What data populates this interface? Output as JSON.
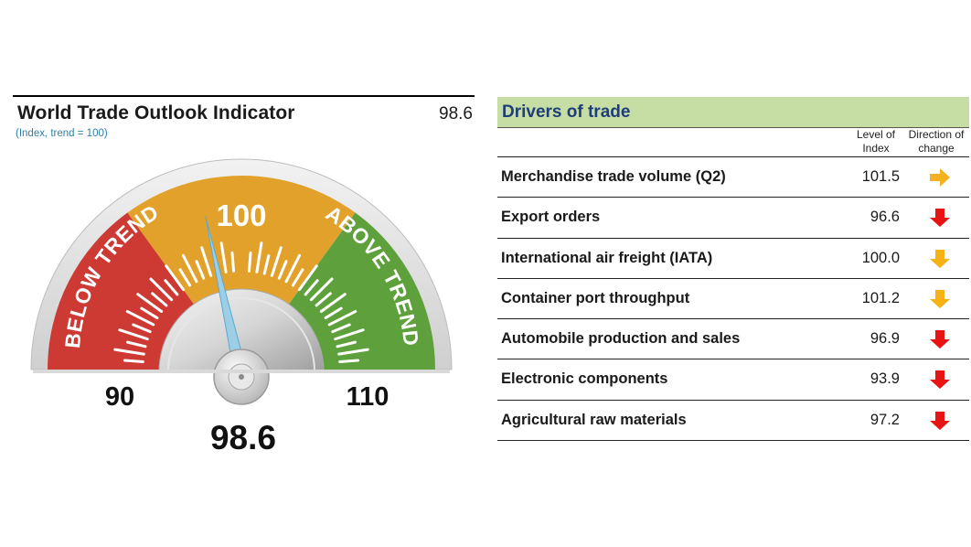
{
  "indicator": {
    "title": "World Trade Outlook Indicator",
    "value": "98.6",
    "subtitle": "(Index, trend = 100)"
  },
  "chart_data": {
    "type": "gauge",
    "min": 90,
    "max": 110,
    "trend": 100,
    "value": 98.6,
    "labels": {
      "min": "90",
      "max": "110",
      "center": "100",
      "reading": "98.6",
      "below": "BELOW TREND",
      "above": "ABOVE TREND"
    },
    "bands": [
      {
        "name": "below",
        "from": 90,
        "to": 96,
        "color": "#cd3a34"
      },
      {
        "name": "trend",
        "from": 96,
        "to": 104,
        "color": "#e2a12a"
      },
      {
        "name": "above",
        "from": 104,
        "to": 110,
        "color": "#5ea13c"
      }
    ]
  },
  "drivers": {
    "title": "Drivers of trade",
    "col_level": "Level of Index",
    "col_direction": "Direction of change",
    "rows": [
      {
        "label": "Merchandise trade volume (Q2)",
        "value": "101.5",
        "direction": "right",
        "color": "#f5b120"
      },
      {
        "label": "Export orders",
        "value": "96.6",
        "direction": "down",
        "color": "#e81414"
      },
      {
        "label": "International air freight (IATA)",
        "value": "100.0",
        "direction": "down",
        "color": "#f7b316"
      },
      {
        "label": "Container port throughput",
        "value": "101.2",
        "direction": "down",
        "color": "#f7b316"
      },
      {
        "label": "Automobile production and sales",
        "value": "96.9",
        "direction": "down",
        "color": "#e81414"
      },
      {
        "label": "Electronic components",
        "value": "93.9",
        "direction": "down",
        "color": "#e81414"
      },
      {
        "label": "Agricultural raw materials",
        "value": "97.2",
        "direction": "down",
        "color": "#e81414"
      }
    ]
  }
}
